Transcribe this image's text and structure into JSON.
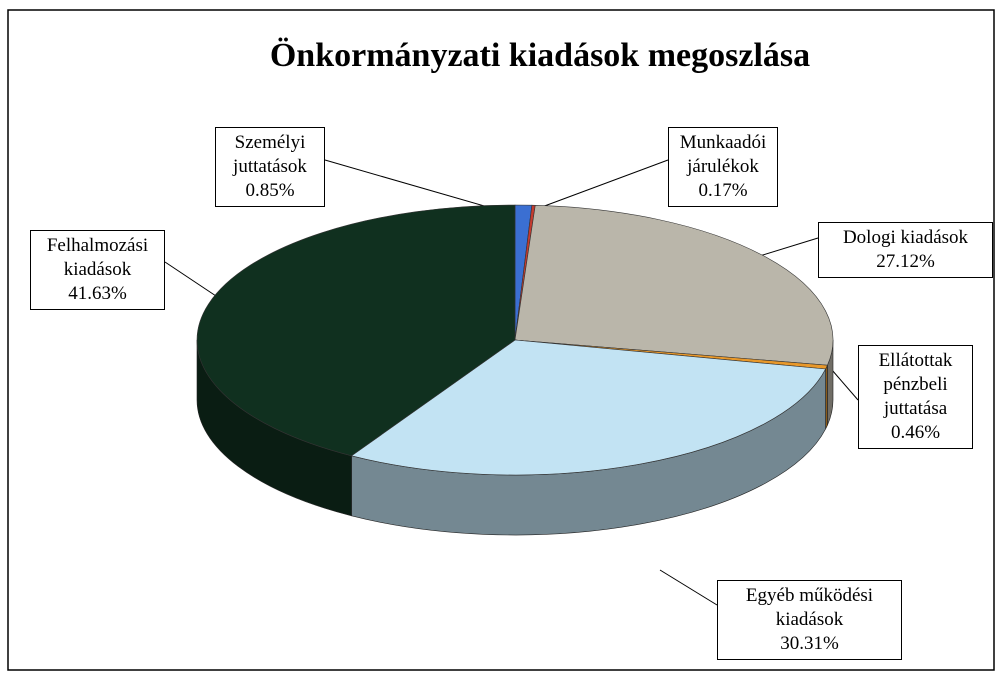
{
  "chart_data": {
    "type": "pie",
    "title": "Önkormányzati kiadások megoszlása",
    "categories": [
      "Személyi juttatások",
      "Munkaadói járulékok",
      "Dologi kiadások",
      "Ellátottak pénzbeli juttatása",
      "Egyéb működési kiadások",
      "Felhalmozási kiadások"
    ],
    "values": [
      0.85,
      0.17,
      27.12,
      0.46,
      30.31,
      41.63
    ],
    "value_labels": [
      "0.85%",
      "0.17%",
      "27.12%",
      "0.46%",
      "30.31%",
      "41.63%"
    ],
    "colors": [
      "#3b6fd2",
      "#c43a2e",
      "#bab6aa",
      "#e8982a",
      "#c2e3f3",
      "#10301f"
    ]
  }
}
